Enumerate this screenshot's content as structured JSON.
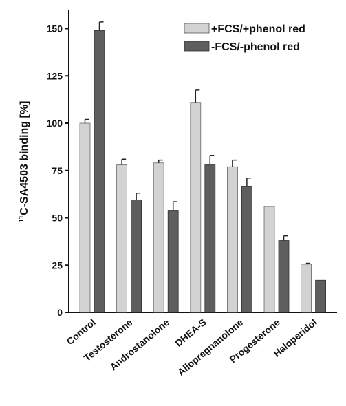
{
  "chart_data": {
    "type": "bar",
    "title": "",
    "ylabel_superscript": "11",
    "ylabel_main": "C-SA4503 binding [%]",
    "xlabel": "",
    "categories": [
      "Control",
      "Testosterone",
      "Androstanolone",
      "DHEA-S",
      "Allopregnanolone",
      "Progesterone",
      "Haloperidol"
    ],
    "series": [
      {
        "name": "+FCS/+phenol red",
        "color": "#d2d2d2",
        "values": [
          100,
          78,
          79,
          111,
          77,
          56,
          25.5
        ],
        "errors": [
          2,
          3,
          1.5,
          6.5,
          3.5,
          0,
          0.5
        ]
      },
      {
        "name": "-FCS/-phenol red",
        "color": "#5e5e5e",
        "values": [
          149,
          59.5,
          54,
          78,
          66.5,
          38,
          17
        ],
        "errors": [
          4.5,
          3.5,
          4.5,
          5,
          4.5,
          2.5,
          0
        ]
      }
    ],
    "ylim": [
      0,
      160
    ],
    "yticks": [
      0,
      25,
      50,
      75,
      100,
      125,
      150
    ],
    "legend_position": "top-right",
    "grid": false
  }
}
